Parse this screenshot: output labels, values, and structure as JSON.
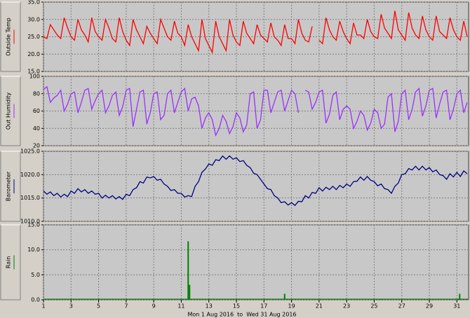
{
  "chart_data": [
    {
      "type": "line",
      "ylabel": "Outside Temp",
      "color": "#ff0000",
      "x": [
        1,
        1.25,
        1.5,
        1.75,
        2,
        2.25,
        2.5,
        2.75,
        3,
        3.25,
        3.5,
        3.75,
        4,
        4.25,
        4.5,
        4.75,
        5,
        5.25,
        5.5,
        5.75,
        6,
        6.25,
        6.5,
        6.75,
        7,
        7.25,
        7.5,
        7.75,
        8,
        8.25,
        8.5,
        8.75,
        9,
        9.25,
        9.5,
        9.75,
        10,
        10.25,
        10.5,
        10.75,
        11,
        11.25,
        11.5,
        11.75,
        12,
        12.25,
        12.5,
        12.75,
        13,
        13.25,
        13.5,
        13.75,
        14,
        14.25,
        14.5,
        14.75,
        15,
        15.25,
        15.5,
        15.75,
        16,
        16.25,
        16.5,
        16.75,
        17,
        17.25,
        17.5,
        17.75,
        18,
        18.25,
        18.5,
        18.75,
        19,
        19.25,
        19.5,
        19.75,
        20,
        20.25,
        20.5,
        20.75,
        21,
        21.25,
        21.5,
        21.75,
        22,
        22.25,
        22.5,
        22.75,
        23,
        23.25,
        23.5,
        23.75,
        24,
        24.25,
        24.5,
        24.75,
        25,
        25.25,
        25.5,
        25.75,
        26,
        26.25,
        26.5,
        26.75,
        27,
        27.25,
        27.5,
        27.75,
        28,
        28.25,
        28.5,
        28.75,
        29,
        29.25,
        29.5,
        29.75,
        30,
        30.25,
        30.5,
        30.75,
        31,
        31.25,
        31.5,
        31.75
      ],
      "values": [
        25.0,
        24.5,
        28.5,
        27.0,
        25.5,
        24.5,
        30.5,
        27.5,
        25.0,
        24.0,
        30.0,
        27.0,
        25.5,
        23.5,
        30.5,
        26.5,
        25.0,
        24.0,
        30.0,
        27.5,
        24.5,
        23.5,
        30.5,
        26.5,
        24.0,
        22.5,
        30.0,
        27.0,
        25.0,
        23.0,
        28.0,
        26.0,
        24.5,
        23.0,
        30.0,
        27.5,
        25.0,
        24.0,
        29.5,
        26.0,
        25.0,
        22.5,
        28.5,
        25.0,
        23.0,
        21.0,
        30.0,
        24.5,
        22.5,
        20.5,
        29.5,
        25.0,
        23.0,
        21.0,
        30.0,
        25.5,
        23.5,
        22.5,
        29.5,
        26.0,
        24.5,
        23.0,
        28.5,
        25.5,
        24.5,
        23.5,
        29.0,
        25.0,
        24.0,
        22.5,
        28.5,
        24.5,
        24.5,
        23.0,
        30.0,
        26.0,
        24.0,
        23.5,
        28.0,
        null,
        24.0,
        23.0,
        30.5,
        27.0,
        25.0,
        24.0,
        29.5,
        26.5,
        24.5,
        23.0,
        29.0,
        25.5,
        25.5,
        24.5,
        30.0,
        26.5,
        25.0,
        24.5,
        31.5,
        27.5,
        26.0,
        24.5,
        32.5,
        27.0,
        25.5,
        24.0,
        32.0,
        27.5,
        25.5,
        24.5,
        31.0,
        27.0,
        25.0,
        24.0,
        31.0,
        26.5,
        25.5,
        24.5,
        30.5,
        27.0,
        25.0,
        24.0,
        29.5,
        25.0
      ],
      "xlim": [
        1,
        31.85
      ],
      "ylim": [
        15,
        35
      ],
      "yticks": [
        {
          "value": 15,
          "label": "15.0"
        },
        {
          "value": 20,
          "label": "20.0"
        },
        {
          "value": 25,
          "label": "25.0"
        },
        {
          "value": 30,
          "label": "30.0"
        },
        {
          "value": 35,
          "label": "35.0"
        }
      ],
      "grid": true
    },
    {
      "type": "line",
      "ylabel": "Out Humidity",
      "color": "#9b30ff",
      "x": [
        1,
        1.25,
        1.5,
        1.75,
        2,
        2.25,
        2.5,
        2.75,
        3,
        3.25,
        3.5,
        3.75,
        4,
        4.25,
        4.5,
        4.75,
        5,
        5.25,
        5.5,
        5.75,
        6,
        6.25,
        6.5,
        6.75,
        7,
        7.25,
        7.5,
        7.75,
        8,
        8.25,
        8.5,
        8.75,
        9,
        9.25,
        9.5,
        9.75,
        10,
        10.25,
        10.5,
        10.75,
        11,
        11.25,
        11.5,
        11.75,
        12,
        12.25,
        12.5,
        12.75,
        13,
        13.25,
        13.5,
        13.75,
        14,
        14.25,
        14.5,
        14.75,
        15,
        15.25,
        15.5,
        15.75,
        16,
        16.25,
        16.5,
        16.75,
        17,
        17.25,
        17.5,
        17.75,
        18,
        18.25,
        18.5,
        18.75,
        19,
        19.25,
        19.5,
        19.75,
        20,
        20.25,
        20.5,
        20.75,
        21,
        21.25,
        21.5,
        21.75,
        22,
        22.25,
        22.5,
        22.75,
        23,
        23.25,
        23.5,
        23.75,
        24,
        24.25,
        24.5,
        24.75,
        25,
        25.25,
        25.5,
        25.75,
        26,
        26.25,
        26.5,
        26.75,
        27,
        27.25,
        27.5,
        27.75,
        28,
        28.25,
        28.5,
        28.75,
        29,
        29.25,
        29.5,
        29.75,
        30,
        30.25,
        30.5,
        30.75,
        31,
        31.25,
        31.5,
        31.75
      ],
      "values": [
        85,
        88,
        70,
        75,
        78,
        84,
        60,
        68,
        80,
        82,
        58,
        70,
        84,
        86,
        62,
        72,
        80,
        84,
        58,
        66,
        78,
        82,
        55,
        65,
        84,
        86,
        42,
        62,
        82,
        84,
        45,
        58,
        80,
        82,
        50,
        55,
        80,
        84,
        58,
        70,
        82,
        86,
        60,
        74,
        76,
        66,
        40,
        52,
        58,
        50,
        32,
        40,
        55,
        48,
        34,
        42,
        58,
        52,
        36,
        44,
        80,
        82,
        40,
        50,
        84,
        84,
        58,
        70,
        82,
        84,
        60,
        72,
        84,
        80,
        58,
        null,
        84,
        82,
        62,
        70,
        82,
        84,
        46,
        56,
        78,
        82,
        50,
        62,
        66,
        62,
        40,
        48,
        60,
        55,
        38,
        46,
        62,
        58,
        40,
        45,
        76,
        80,
        36,
        48,
        80,
        84,
        50,
        62,
        82,
        86,
        54,
        66,
        84,
        86,
        52,
        68,
        82,
        84,
        50,
        62,
        80,
        84,
        58,
        70
      ],
      "xlim": [
        1,
        31.85
      ],
      "ylim": [
        20,
        100
      ],
      "yticks": [
        20,
        40,
        60,
        80,
        100
      ],
      "grid": true
    },
    {
      "type": "line",
      "ylabel": "Barometer",
      "color": "#000080",
      "x": [
        1,
        1.25,
        1.5,
        1.75,
        2,
        2.25,
        2.5,
        2.75,
        3,
        3.25,
        3.5,
        3.75,
        4,
        4.25,
        4.5,
        4.75,
        5,
        5.25,
        5.5,
        5.75,
        6,
        6.25,
        6.5,
        6.75,
        7,
        7.25,
        7.5,
        7.75,
        8,
        8.25,
        8.5,
        8.75,
        9,
        9.25,
        9.5,
        9.75,
        10,
        10.25,
        10.5,
        10.75,
        11,
        11.25,
        11.5,
        11.75,
        12,
        12.25,
        12.5,
        12.75,
        13,
        13.25,
        13.5,
        13.75,
        14,
        14.25,
        14.5,
        14.75,
        15,
        15.25,
        15.5,
        15.75,
        16,
        16.25,
        16.5,
        16.75,
        17,
        17.25,
        17.5,
        17.75,
        18,
        18.25,
        18.5,
        18.75,
        19,
        19.25,
        19.5,
        19.75,
        20,
        20.25,
        20.5,
        20.75,
        21,
        21.25,
        21.5,
        21.75,
        22,
        22.25,
        22.5,
        22.75,
        23,
        23.25,
        23.5,
        23.75,
        24,
        24.25,
        24.5,
        24.75,
        25,
        25.25,
        25.5,
        25.75,
        26,
        26.25,
        26.5,
        26.75,
        27,
        27.25,
        27.5,
        27.75,
        28,
        28.25,
        28.5,
        28.75,
        29,
        29.25,
        29.5,
        29.75,
        30,
        30.25,
        30.5,
        30.75,
        31,
        31.25,
        31.5,
        31.75
      ],
      "values": [
        1016.5,
        1015.8,
        1016.3,
        1015.5,
        1016.0,
        1015.2,
        1015.8,
        1015.3,
        1016.5,
        1016.0,
        1017.0,
        1016.3,
        1016.8,
        1016.0,
        1016.5,
        1015.8,
        1016.0,
        1015.0,
        1015.6,
        1015.0,
        1015.5,
        1014.8,
        1015.3,
        1014.7,
        1015.8,
        1015.5,
        1016.8,
        1017.2,
        1018.5,
        1018.2,
        1019.5,
        1019.3,
        1019.6,
        1018.8,
        1019.0,
        1018.0,
        1017.5,
        1016.6,
        1016.8,
        1016.0,
        1016.0,
        1015.2,
        1015.5,
        1015.3,
        1017.5,
        1018.5,
        1020.5,
        1021.2,
        1022.3,
        1022.0,
        1023.2,
        1023.0,
        1024.0,
        1023.3,
        1024.0,
        1023.3,
        1023.6,
        1022.8,
        1023.0,
        1022.0,
        1021.5,
        1020.3,
        1020.0,
        1019.0,
        1018.0,
        1017.0,
        1016.8,
        1015.5,
        1015.0,
        1014.0,
        1014.2,
        1013.5,
        1014.0,
        1013.4,
        1014.3,
        1014.2,
        1015.5,
        1015.0,
        1016.2,
        1016.0,
        1017.2,
        1016.5,
        1017.3,
        1016.8,
        1017.5,
        1016.8,
        1017.7,
        1017.2,
        1018.0,
        1017.5,
        1018.5,
        1018.6,
        1019.5,
        1018.8,
        1019.6,
        1018.8,
        1018.5,
        1017.6,
        1018.0,
        1017.0,
        1016.8,
        1016.0,
        1017.5,
        1018.2,
        1020.0,
        1020.2,
        1021.3,
        1021.0,
        1021.8,
        1021.0,
        1021.8,
        1021.0,
        1021.5,
        1020.6,
        1021.0,
        1020.0,
        1019.8,
        1019.0,
        1020.2,
        1019.5,
        1020.5,
        1019.6,
        1020.8,
        1020.2
      ],
      "xlim": [
        1,
        31.85
      ],
      "ylim": [
        1010,
        1025
      ],
      "yticks": [
        {
          "value": 1010,
          "label": "1010.0"
        },
        {
          "value": 1015,
          "label": "1015.0"
        },
        {
          "value": 1020,
          "label": "1020.0"
        },
        {
          "value": 1025,
          "label": "1025.0"
        }
      ],
      "grid": true
    },
    {
      "type": "bar",
      "ylabel": "Rain",
      "color": "#008000",
      "x": [
        4.5,
        8.5,
        11.5,
        11.6,
        18.5,
        25.5,
        31.2
      ],
      "values": [
        0.1,
        0.2,
        11.7,
        3.0,
        1.2,
        0.2,
        1.2
      ],
      "xlim": [
        1,
        31.85
      ],
      "ylim": [
        0,
        15
      ],
      "yticks": [
        {
          "value": 0,
          "label": "0.0"
        },
        {
          "value": 5,
          "label": "5.0"
        },
        {
          "value": 10,
          "label": "10.0"
        },
        {
          "value": 15,
          "label": "15.0"
        }
      ],
      "grid": true,
      "xticks": [
        1,
        3,
        5,
        7,
        9,
        11,
        13,
        15,
        17,
        19,
        21,
        23,
        25,
        27,
        29,
        31
      ],
      "xlabel": "Mon 1 Aug 2016  to  Wed 31 Aug 2016"
    }
  ]
}
